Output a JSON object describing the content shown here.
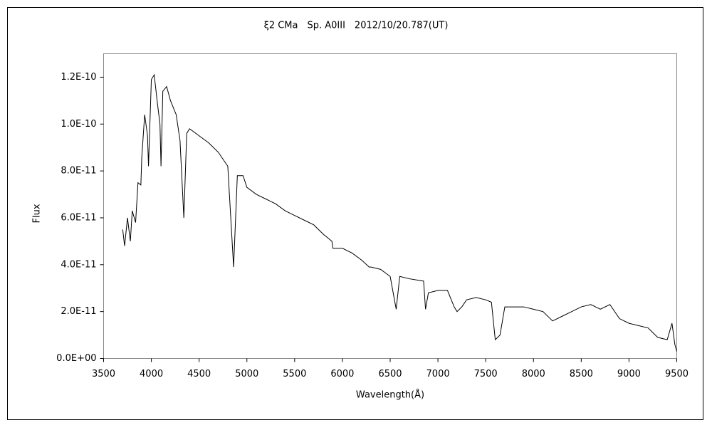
{
  "chart_data": {
    "type": "line",
    "title": "ξ2 CMa　Sp. A0III　2012/10/20.787(UT)",
    "x_label": "Wavelength(Å)",
    "y_label": "Flux",
    "xlim": [
      3500,
      9500
    ],
    "xticks": [
      3500,
      4000,
      4500,
      5000,
      5500,
      6000,
      6500,
      7000,
      7500,
      8000,
      8500,
      9000,
      9500
    ],
    "ylim": [
      0,
      1.3e-10
    ],
    "yticks": [
      {
        "value": 0,
        "label": "0.0E+00"
      },
      {
        "value": 2e-11,
        "label": "2.0E-11"
      },
      {
        "value": 4e-11,
        "label": "4.0E-11"
      },
      {
        "value": 6e-11,
        "label": "6.0E-11"
      },
      {
        "value": 8e-11,
        "label": "8.0E-11"
      },
      {
        "value": 1e-10,
        "label": "1.0E-10"
      },
      {
        "value": 1.2e-10,
        "label": "1.2E-10"
      }
    ],
    "grid": false,
    "x": [
      3700,
      3720,
      3750,
      3780,
      3800,
      3835,
      3860,
      3890,
      3900,
      3930,
      3960,
      3970,
      4000,
      4030,
      4060,
      4090,
      4101,
      4120,
      4160,
      4200,
      4260,
      4300,
      4340,
      4370,
      4400,
      4500,
      4600,
      4700,
      4800,
      4861,
      4900,
      4960,
      5000,
      5100,
      5200,
      5300,
      5400,
      5500,
      5600,
      5700,
      5800,
      5890,
      5900,
      6000,
      6100,
      6200,
      6280,
      6300,
      6400,
      6500,
      6563,
      6600,
      6700,
      6850,
      6870,
      6900,
      7000,
      7100,
      7170,
      7200,
      7250,
      7300,
      7400,
      7500,
      7560,
      7600,
      7650,
      7700,
      7800,
      7900,
      8000,
      8100,
      8200,
      8300,
      8400,
      8500,
      8600,
      8700,
      8800,
      8900,
      9000,
      9100,
      9200,
      9300,
      9400,
      9450,
      9480,
      9500
    ],
    "series": [
      {
        "name": "Flux",
        "color": "#000000",
        "values": [
          5.5e-11,
          4.8e-11,
          6e-11,
          5e-11,
          6.3e-11,
          5.8e-11,
          7.5e-11,
          7.4e-11,
          8.6e-11,
          1.04e-10,
          9.5e-11,
          8.2e-11,
          1.19e-10,
          1.21e-10,
          1.1e-10,
          1e-10,
          8.2e-11,
          1.14e-10,
          1.16e-10,
          1.1e-10,
          1.04e-10,
          9.3e-11,
          6e-11,
          9.6e-11,
          9.8e-11,
          9.5e-11,
          9.2e-11,
          8.8e-11,
          8.2e-11,
          3.9e-11,
          7.8e-11,
          7.8e-11,
          7.3e-11,
          7e-11,
          6.8e-11,
          6.6e-11,
          6.3e-11,
          6.1e-11,
          5.9e-11,
          5.7e-11,
          5.3e-11,
          5e-11,
          4.7e-11,
          4.7e-11,
          4.5e-11,
          4.2e-11,
          3.9e-11,
          3.9e-11,
          3.8e-11,
          3.5e-11,
          2.1e-11,
          3.5e-11,
          3.4e-11,
          3.3e-11,
          2.1e-11,
          2.8e-11,
          2.9e-11,
          2.9e-11,
          2.2e-11,
          2e-11,
          2.2e-11,
          2.5e-11,
          2.6e-11,
          2.5e-11,
          2.4e-11,
          8e-12,
          1e-11,
          2.2e-11,
          2.2e-11,
          2.2e-11,
          2.1e-11,
          2e-11,
          1.6e-11,
          1.8e-11,
          2e-11,
          2.2e-11,
          2.3e-11,
          2.1e-11,
          2.3e-11,
          1.7e-11,
          1.5e-11,
          1.4e-11,
          1.3e-11,
          9e-12,
          8e-12,
          1.5e-11,
          6e-12,
          3e-12
        ]
      }
    ]
  }
}
